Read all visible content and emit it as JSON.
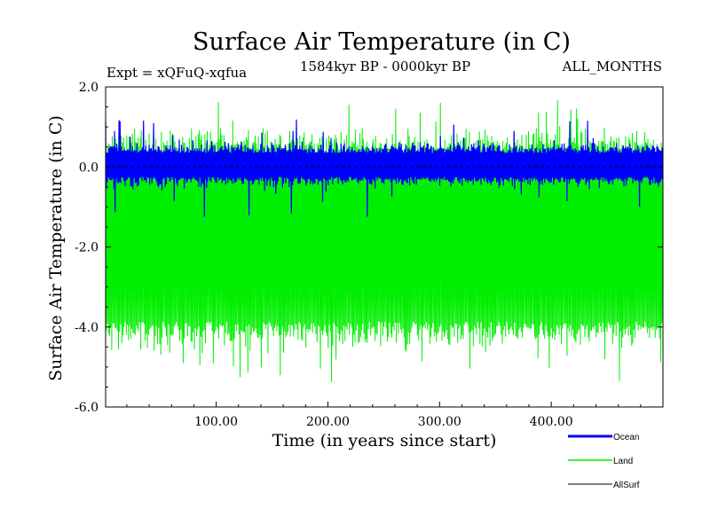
{
  "chart_data": {
    "type": "line",
    "title": "Surface Air Temperature (in C)",
    "subtitle_left": "Expt = xQFuQ-xqfua",
    "subtitle_center": "1584kyr BP - 0000kyr BP",
    "subtitle_right": "ALL_MONTHS",
    "xlabel": "Time (in years since start)",
    "ylabel": "Surface Air Temperature (in C)",
    "xlim": [
      1,
      500
    ],
    "ylim": [
      -6.0,
      2.0
    ],
    "x_ticks": [
      {
        "value": 100,
        "label": "100.00"
      },
      {
        "value": 200,
        "label": "200.00"
      },
      {
        "value": 300,
        "label": "300.00"
      },
      {
        "value": 400,
        "label": "400.00"
      }
    ],
    "y_ticks": [
      {
        "value": 2.0,
        "label": "2.0"
      },
      {
        "value": 0.0,
        "label": "0.0"
      },
      {
        "value": -2.0,
        "label": "-2.0"
      },
      {
        "value": -4.0,
        "label": "-4.0"
      },
      {
        "value": -6.0,
        "label": "-6.0"
      }
    ],
    "series": [
      {
        "name": "Land",
        "color": "#00ee00",
        "approx_min": -5.4,
        "approx_max": 1.8,
        "typical_low": -4.3,
        "typical_high": 0.6,
        "mean": 0.0
      },
      {
        "name": "Ocean",
        "color": "#0000ff",
        "approx_min": -1.3,
        "approx_max": 1.2,
        "typical_low": -0.5,
        "typical_high": 0.6,
        "mean": 0.0
      },
      {
        "name": "AllSurf",
        "color": "#000000",
        "values_constant": 0.0
      }
    ]
  }
}
